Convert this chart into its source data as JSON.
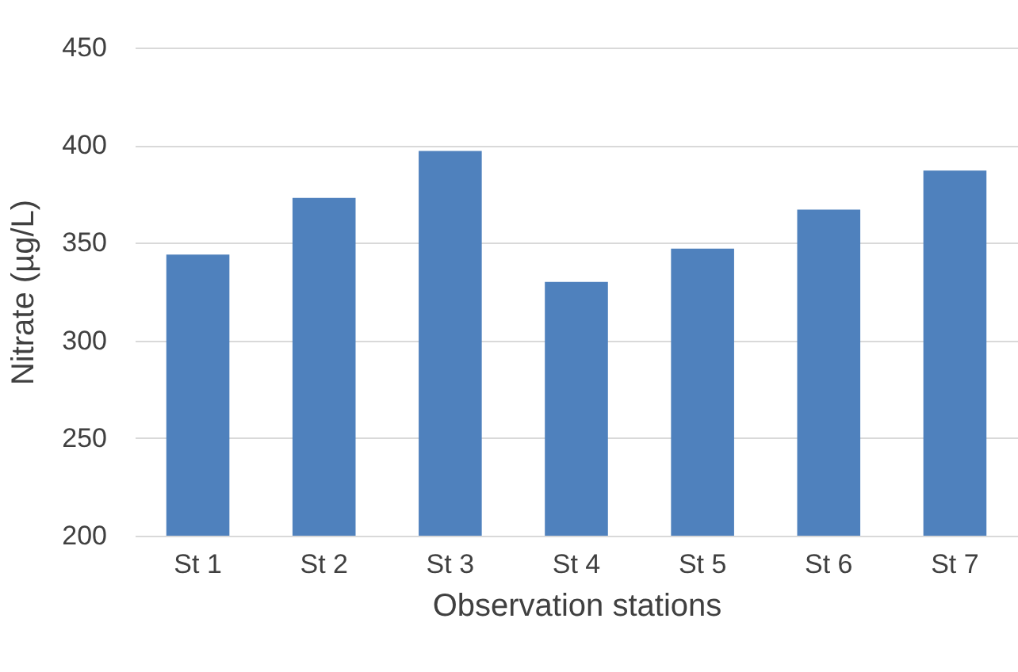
{
  "chart_data": {
    "type": "bar",
    "xlabel": "Observation stations",
    "ylabel": "Nitrate  (µg/L)",
    "categories": [
      "St 1",
      "St 2",
      "St 3",
      "St 4",
      "St 5",
      "St 6",
      "St 7"
    ],
    "values": [
      344,
      373,
      397,
      330,
      347,
      367,
      387
    ],
    "color": "#4f81bd",
    "ylim": [
      200,
      450
    ],
    "yticks": [
      200,
      250,
      300,
      350,
      400,
      450
    ],
    "grid": "y"
  }
}
